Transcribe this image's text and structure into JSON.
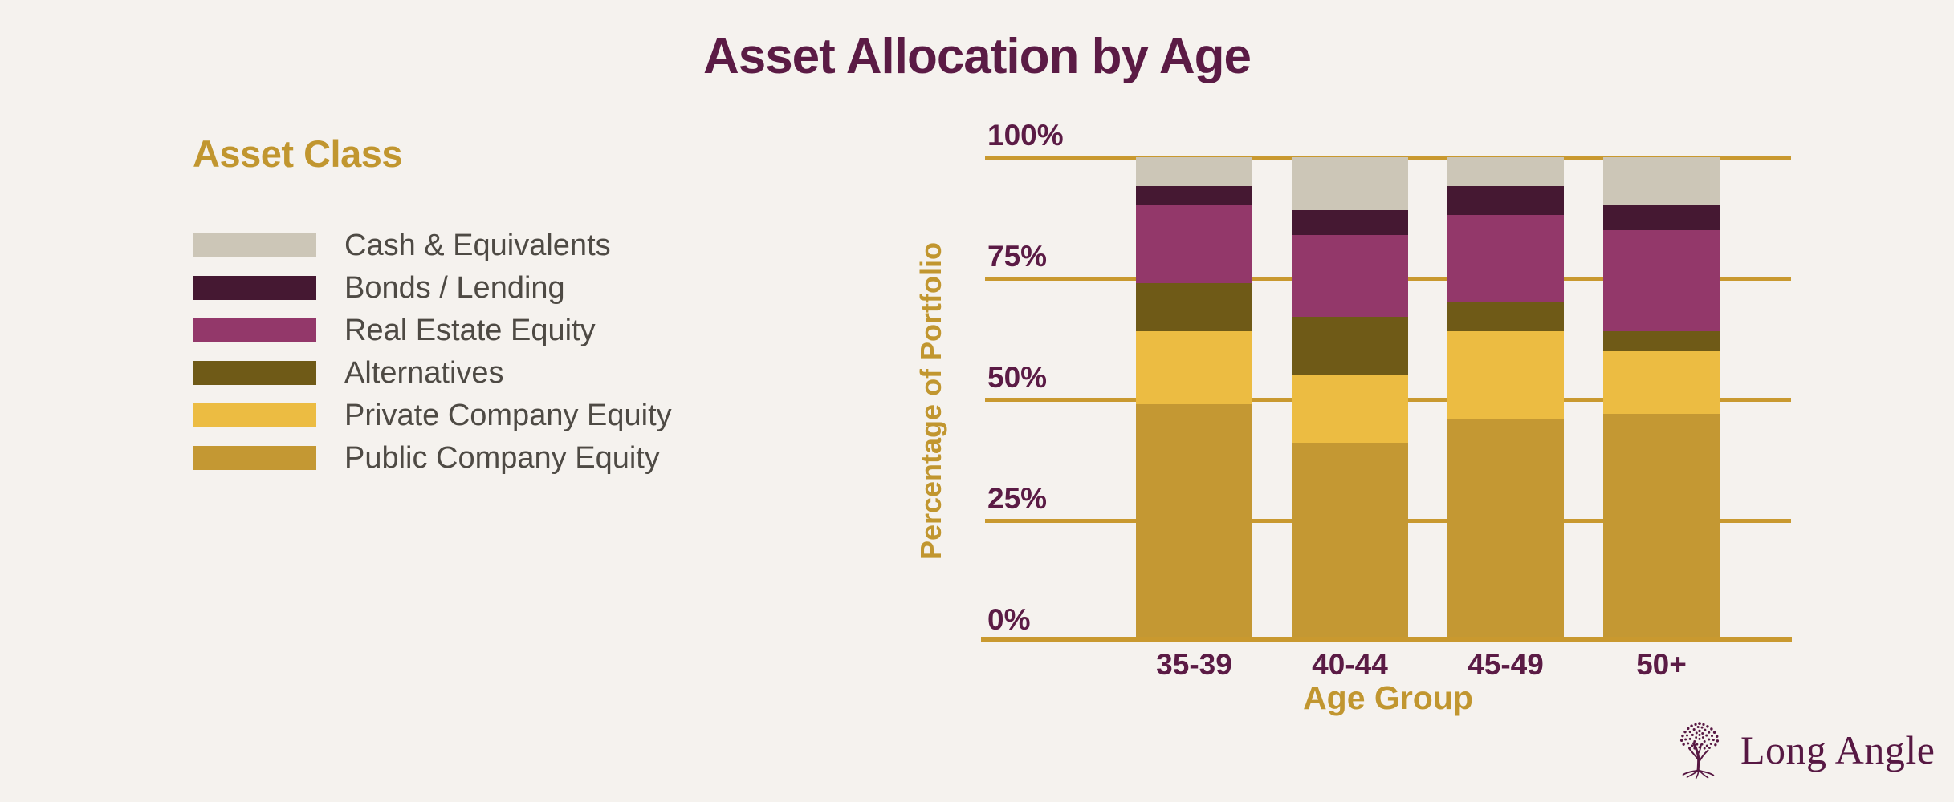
{
  "title": "Asset Allocation by Age",
  "legend": {
    "title": "Asset Class"
  },
  "logo": {
    "text": "Long Angle"
  },
  "colors": {
    "background": "#F5F2EE",
    "title_text": "#5B1B45",
    "tick_text": "#5B1B45",
    "gold_text": "#C1962F",
    "gridline": "#C9992F",
    "legend_label": "#4E4A44",
    "logo": "#571843"
  },
  "chart_data": {
    "type": "bar",
    "subtype": "stacked-percent-column",
    "title": "Asset Allocation by Age",
    "xlabel": "Age Group",
    "ylabel": "Percentage of Portfolio",
    "categories": [
      "35-39",
      "40-44",
      "45-49",
      "50+"
    ],
    "series": [
      {
        "name": "Cash & Equivalents",
        "color": "#CCC6B7",
        "values": [
          6,
          11,
          6,
          10
        ]
      },
      {
        "name": "Bonds / Lending",
        "color": "#451832",
        "values": [
          4,
          5,
          6,
          5
        ]
      },
      {
        "name": "Real Estate Equity",
        "color": "#93386A",
        "values": [
          16,
          17,
          18,
          21
        ]
      },
      {
        "name": "Alternatives",
        "color": "#6F5A17",
        "values": [
          10,
          12,
          6,
          4
        ]
      },
      {
        "name": "Private Company Equity",
        "color": "#ECBC42",
        "values": [
          15,
          14,
          18,
          13
        ]
      },
      {
        "name": "Public Company Equity",
        "color": "#C49833",
        "values": [
          49,
          41,
          46,
          47
        ]
      }
    ],
    "stack_order_note": "series listed top-of-stack first; every column sums to 100",
    "ylim": [
      0,
      100
    ],
    "yticks": [
      {
        "value": 0,
        "label": "0%"
      },
      {
        "value": 25,
        "label": "25%"
      },
      {
        "value": 50,
        "label": "50%"
      },
      {
        "value": 75,
        "label": "75%"
      },
      {
        "value": 100,
        "label": "100%"
      }
    ],
    "grid": true,
    "legend_position": "left"
  }
}
